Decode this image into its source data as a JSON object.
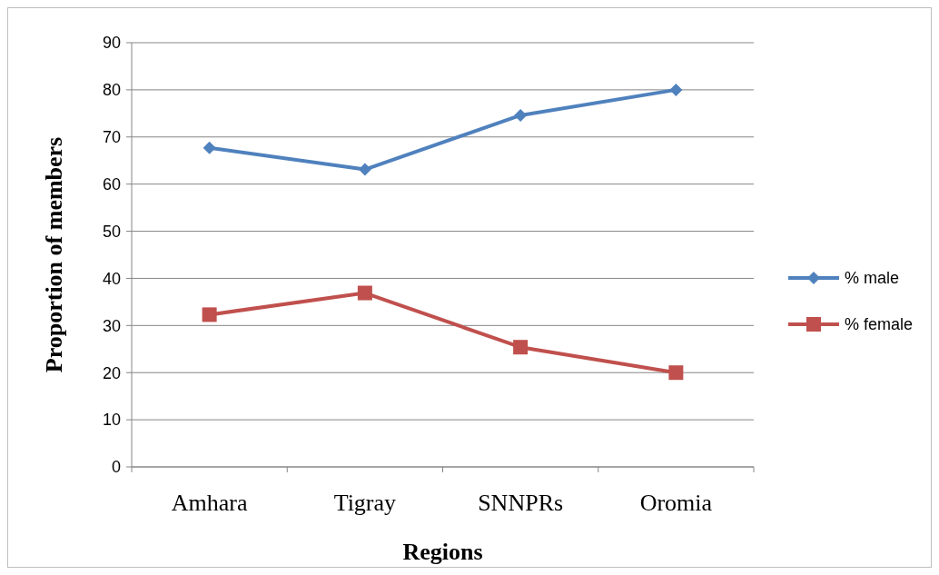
{
  "chart_data": {
    "type": "line",
    "xlabel": "Regions",
    "ylabel": "Proportion of members",
    "categories": [
      "Amhara",
      "Tigray",
      "SNNPRs",
      "Oromia"
    ],
    "series": [
      {
        "name": "% male",
        "color": "#4f81bd",
        "marker": "diamond",
        "values": [
          67.7,
          63.1,
          74.6,
          80
        ]
      },
      {
        "name": "% female",
        "color": "#c0504d",
        "marker": "square",
        "values": [
          32.3,
          36.9,
          25.4,
          20
        ]
      }
    ],
    "ylim": [
      0,
      90
    ],
    "yticks": [
      0,
      10,
      20,
      30,
      40,
      50,
      60,
      70,
      80,
      90
    ],
    "grid": "y",
    "legend": "right"
  }
}
